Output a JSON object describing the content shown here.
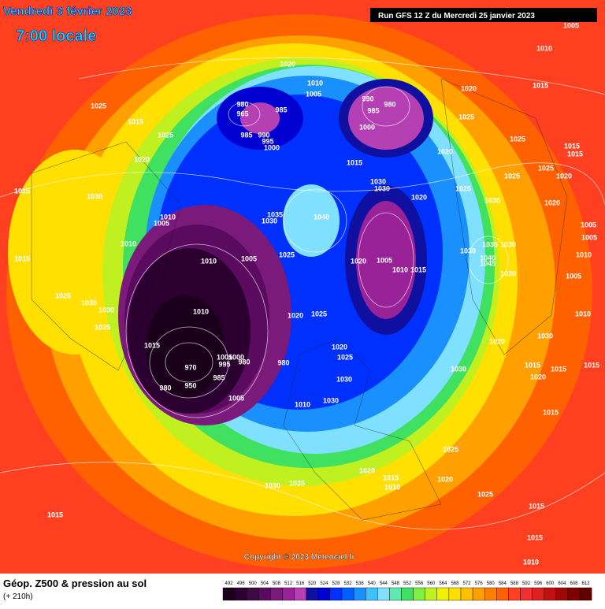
{
  "header": {
    "date": "Vendredi 3 février 2023",
    "time": "7:00 locale",
    "run": "Run GFS 12 Z du Mercredi 25 janvier 2023"
  },
  "footer": {
    "title": "Géop. Z500 & pression au sol",
    "lead": "(+ 210h)",
    "copyright": "Copyright © 2023 Meteociel.fr"
  },
  "legend": {
    "levels": [
      492,
      496,
      500,
      504,
      508,
      512,
      516,
      520,
      524,
      528,
      532,
      536,
      540,
      544,
      548,
      552,
      556,
      560,
      564,
      568,
      572,
      576,
      580,
      584,
      588,
      592,
      596,
      600,
      604,
      608,
      612
    ],
    "colors": [
      "#1a001a",
      "#2b0030",
      "#3d0a45",
      "#5a0a5f",
      "#7a1a7a",
      "#992299",
      "#b440b4",
      "#1010a0",
      "#0000d0",
      "#0030ff",
      "#0060ff",
      "#1a90ff",
      "#40c0ff",
      "#80e0ff",
      "#60e8b0",
      "#40e060",
      "#80f040",
      "#c0f020",
      "#f0f000",
      "#ffe000",
      "#ffc000",
      "#ffa000",
      "#ff8000",
      "#ff6000",
      "#ff4020",
      "#f03030",
      "#e02020",
      "#c01010",
      "#a00808",
      "#800000",
      "#600000"
    ]
  },
  "pressure_labels": [
    "1020",
    "1010",
    "1005",
    "980",
    "965",
    "985",
    "990",
    "980",
    "985",
    "1000",
    "985",
    "990",
    "995",
    "1000",
    "1015",
    "1020",
    "1020",
    "1025",
    "1025",
    "1025",
    "1015",
    "1020",
    "1030",
    "1030",
    "1020",
    "1025",
    "1030",
    "1035",
    "1030",
    "1040",
    "1010",
    "1005",
    "1010",
    "1015",
    "1030",
    "1015",
    "1010",
    "1005",
    "1025",
    "1020",
    "1005",
    "1010",
    "1015",
    "1035",
    "1030",
    "1030",
    "1040",
    "1045",
    "1030",
    "1025",
    "1035",
    "1030",
    "1035",
    "1010",
    "1020",
    "1025",
    "1015",
    "1020",
    "1025",
    "1005",
    "1000",
    "995",
    "980",
    "980",
    "970",
    "985",
    "980",
    "950",
    "1005",
    "1030",
    "1030",
    "1020",
    "1010",
    "1030",
    "1025",
    "1020",
    "1015",
    "1010",
    "1020",
    "1025",
    "1030",
    "1035",
    "1015",
    "1015",
    "1015",
    "1010",
    "1005",
    "1010",
    "1015",
    "1025",
    "1015",
    "1015",
    "1025",
    "1020",
    "1025",
    "1020",
    "1005",
    "1005",
    "1010",
    "1005",
    "1010",
    "1030",
    "1015",
    "1015",
    "1015",
    "1020",
    "1015"
  ]
}
